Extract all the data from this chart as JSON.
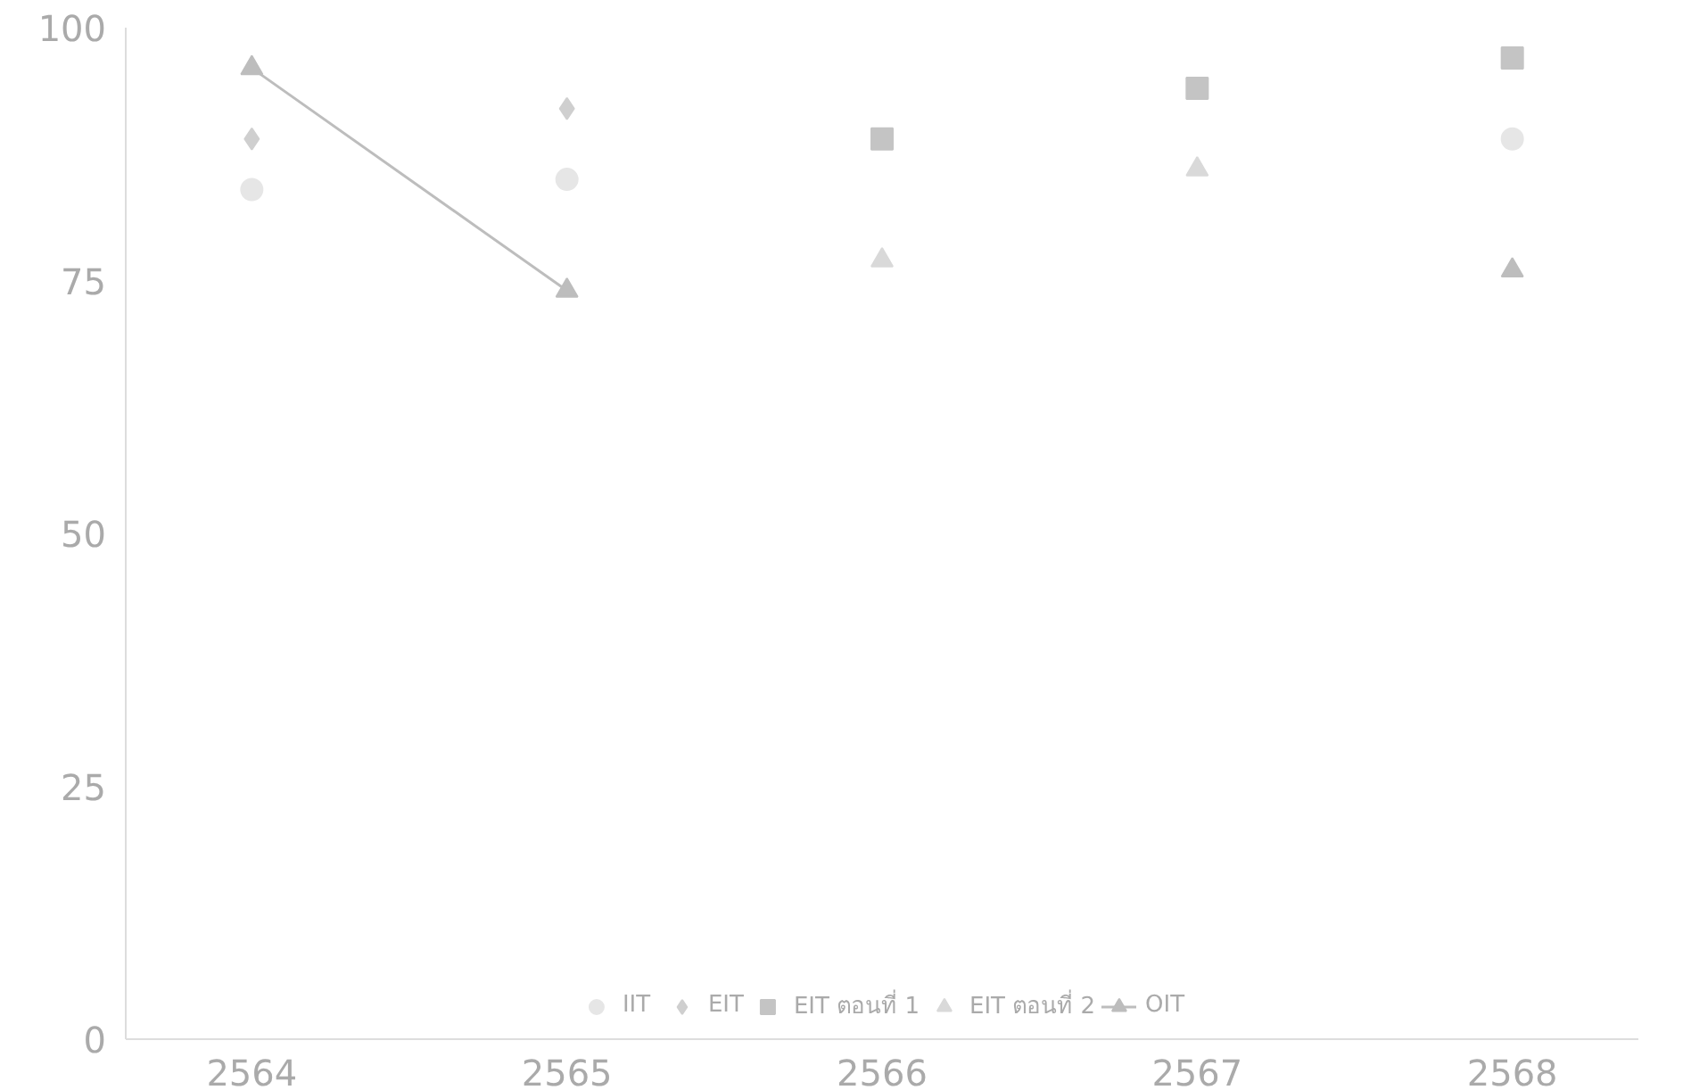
{
  "chart_data": {
    "type": "line",
    "categories": [
      "2564",
      "2565",
      "2566",
      "2567",
      "2568"
    ],
    "ylim": [
      0,
      100
    ],
    "yticks": [
      0,
      25,
      50,
      75,
      100
    ],
    "grid": false,
    "legend": "bottom",
    "series": [
      {
        "name": "IIT",
        "type": "scatter",
        "marker": "circle",
        "color": "#e6e6e6",
        "values": [
          84,
          85,
          null,
          null,
          89
        ]
      },
      {
        "name": "EIT",
        "type": "scatter",
        "marker": "diamond",
        "color": "#cfcfcf",
        "values": [
          89,
          92,
          null,
          null,
          null
        ]
      },
      {
        "name": "EIT ตอนที่ 1",
        "type": "scatter",
        "marker": "square",
        "color": "#c4c4c4",
        "values": [
          null,
          null,
          89,
          94,
          97
        ]
      },
      {
        "name": "EIT ตอนที่ 2",
        "type": "scatter",
        "marker": "triangle",
        "color": "#d9d9d9",
        "values": [
          null,
          null,
          77,
          86,
          null
        ]
      },
      {
        "name": "OIT",
        "marker": "triangle",
        "color": "#bdbdbd",
        "values": [
          96,
          74,
          null,
          null,
          76
        ]
      }
    ]
  }
}
